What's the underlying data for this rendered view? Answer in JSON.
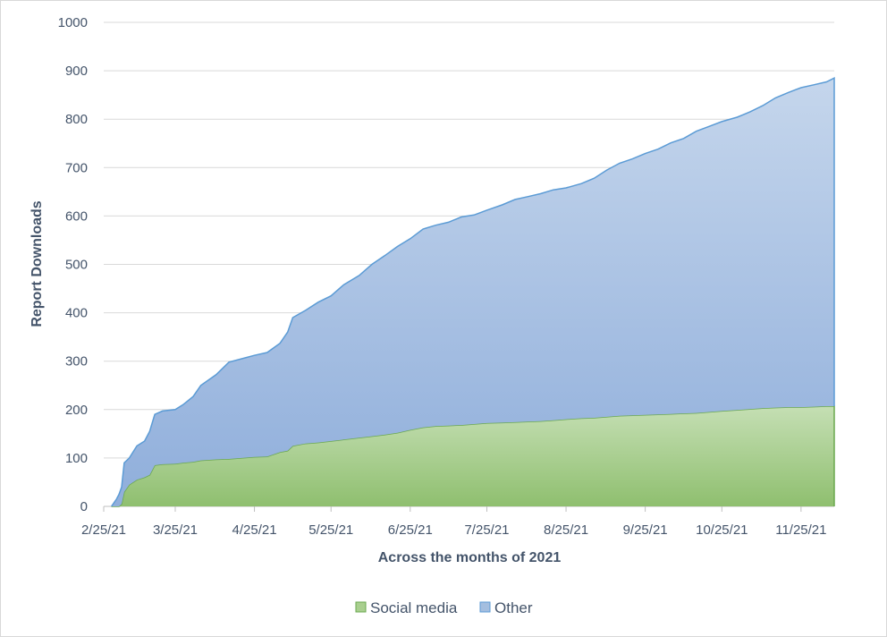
{
  "chart_data": {
    "type": "area",
    "stacked": true,
    "title": "",
    "xlabel": "Across the months of 2021",
    "ylabel": "Report Downloads",
    "ylim": [
      0,
      1000
    ],
    "yticks": [
      0,
      100,
      200,
      300,
      400,
      500,
      600,
      700,
      800,
      900,
      1000
    ],
    "xlim": [
      "2021-02-25",
      "2021-12-08"
    ],
    "xticks": [
      {
        "date": "2021-02-25",
        "label": "2/25/21"
      },
      {
        "date": "2021-03-25",
        "label": "3/25/21"
      },
      {
        "date": "2021-04-25",
        "label": "4/25/21"
      },
      {
        "date": "2021-05-25",
        "label": "5/25/21"
      },
      {
        "date": "2021-06-25",
        "label": "6/25/21"
      },
      {
        "date": "2021-07-25",
        "label": "7/25/21"
      },
      {
        "date": "2021-08-25",
        "label": "8/25/21"
      },
      {
        "date": "2021-09-25",
        "label": "9/25/21"
      },
      {
        "date": "2021-10-25",
        "label": "10/25/21"
      },
      {
        "date": "2021-11-25",
        "label": "11/25/21"
      }
    ],
    "grid": true,
    "legend_position": "bottom",
    "x": [
      "2021-02-28",
      "2021-03-02",
      "2021-03-03",
      "2021-03-04",
      "2021-03-05",
      "2021-03-07",
      "2021-03-10",
      "2021-03-13",
      "2021-03-15",
      "2021-03-17",
      "2021-03-20",
      "2021-03-25",
      "2021-03-28",
      "2021-04-01",
      "2021-04-04",
      "2021-04-10",
      "2021-04-15",
      "2021-04-20",
      "2021-04-25",
      "2021-04-30",
      "2021-05-05",
      "2021-05-08",
      "2021-05-10",
      "2021-05-15",
      "2021-05-20",
      "2021-05-25",
      "2021-05-30",
      "2021-06-05",
      "2021-06-10",
      "2021-06-15",
      "2021-06-20",
      "2021-06-25",
      "2021-06-30",
      "2021-07-05",
      "2021-07-10",
      "2021-07-15",
      "2021-07-20",
      "2021-07-25",
      "2021-07-31",
      "2021-08-05",
      "2021-08-10",
      "2021-08-15",
      "2021-08-20",
      "2021-08-25",
      "2021-08-31",
      "2021-09-05",
      "2021-09-10",
      "2021-09-15",
      "2021-09-20",
      "2021-09-25",
      "2021-09-30",
      "2021-10-05",
      "2021-10-10",
      "2021-10-15",
      "2021-10-20",
      "2021-10-25",
      "2021-10-31",
      "2021-11-05",
      "2021-11-10",
      "2021-11-15",
      "2021-11-20",
      "2021-11-25",
      "2021-11-30",
      "2021-12-05",
      "2021-12-08"
    ],
    "series": [
      {
        "name": "Social media",
        "color": "#8fbf6f",
        "line_color": "#6aa84f",
        "values": [
          0,
          0,
          0,
          5,
          30,
          45,
          55,
          60,
          65,
          85,
          87,
          88,
          90,
          92,
          95,
          97,
          98,
          100,
          102,
          103,
          112,
          115,
          125,
          130,
          132,
          135,
          138,
          142,
          145,
          148,
          152,
          158,
          163,
          166,
          167,
          168,
          170,
          172,
          173,
          174,
          175,
          176,
          178,
          180,
          182,
          183,
          185,
          187,
          188,
          189,
          190,
          191,
          192,
          193,
          195,
          197,
          199,
          201,
          203,
          204,
          205,
          205,
          206,
          207,
          207
        ]
      },
      {
        "name": "Other",
        "color": "#a4bedf",
        "line_color": "#5b9bd5",
        "values": [
          0,
          15,
          25,
          35,
          60,
          55,
          70,
          75,
          90,
          105,
          110,
          112,
          120,
          135,
          155,
          175,
          200,
          205,
          210,
          215,
          225,
          245,
          265,
          275,
          290,
          300,
          320,
          335,
          355,
          370,
          385,
          395,
          410,
          415,
          420,
          430,
          432,
          440,
          450,
          460,
          465,
          470,
          476,
          478,
          485,
          495,
          510,
          522,
          530,
          540,
          548,
          560,
          568,
          582,
          590,
          598,
          605,
          614,
          625,
          640,
          650,
          660,
          665,
          670,
          678
        ]
      }
    ]
  }
}
